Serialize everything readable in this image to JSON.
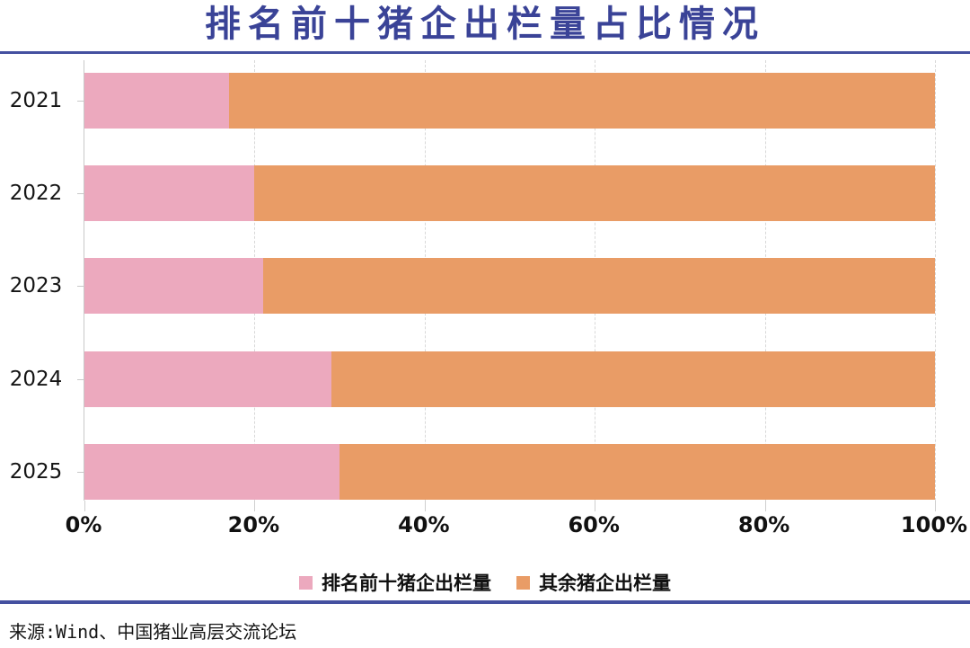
{
  "header": {
    "title": "排名前十猪企出栏量占比情况"
  },
  "colors": {
    "title_text": "#3A4397",
    "divider": "#4450A0",
    "top10_pink": "#ECA9BE",
    "rest_orange": "#E99C66",
    "gridline": "#D8D8D8",
    "axis_line": "#C9C9C9",
    "label_text": "#151515"
  },
  "chart_data": {
    "type": "bar",
    "orientation": "horizontal",
    "stacked": true,
    "unit": "%",
    "title": "排名前十猪企出栏量占比情况",
    "categories": [
      "2021",
      "2022",
      "2023",
      "2024",
      "2025"
    ],
    "series": [
      {
        "name": "排名前十猪企出栏量",
        "color": "#ECA9BE",
        "values": [
          17,
          20,
          21,
          29,
          30
        ]
      },
      {
        "name": "其余猪企出栏量",
        "color": "#E99C66",
        "values": [
          83,
          80,
          79,
          71,
          70
        ]
      }
    ],
    "x_axis": {
      "min": 0,
      "max": 100,
      "ticks": [
        "0%",
        "20%",
        "40%",
        "60%",
        "80%",
        "100%"
      ],
      "grid": "dashed-vertical"
    },
    "legend_position": "bottom"
  },
  "footer": {
    "source": "来源:Wind、中国猪业高层交流论坛"
  }
}
